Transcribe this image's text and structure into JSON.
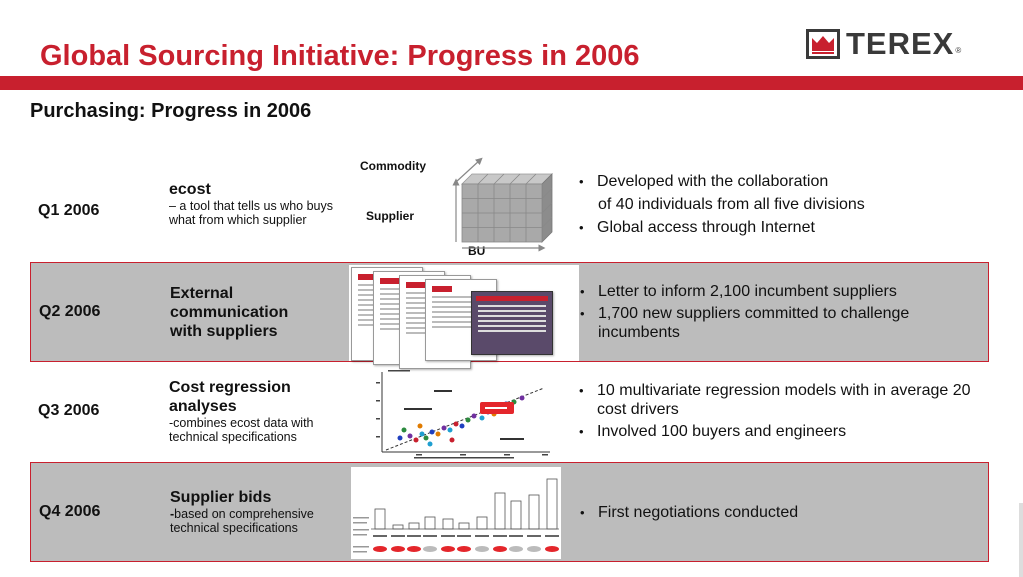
{
  "header": {
    "title": "Global Sourcing Initiative: Progress in 2006",
    "subtitle": "Purchasing: Progress in 2006",
    "logo_text": "TEREX",
    "logo_reg": "®"
  },
  "colors": {
    "accent": "#c8202e",
    "shade": "#bcbcbc"
  },
  "rows": [
    {
      "quarter": "Q1 2006",
      "heading": "ecost",
      "description": "– a tool that tells us who buys what from which supplier",
      "graphic": "cube",
      "graphic_labels": {
        "top": "Commodity",
        "left": "Supplier",
        "bottom": "BU"
      },
      "bullets": [
        "Developed with the collaboration",
        "Global access through Internet"
      ],
      "bullet_continuation": "of 40 individuals from all five divisions"
    },
    {
      "quarter": "Q2 2006",
      "heading": "External communication with  suppliers",
      "description": "",
      "graphic": "documents",
      "bullets": [
        "Letter to inform 2,100 incumbent suppliers",
        "1,700 new suppliers committed to challenge incumbents"
      ]
    },
    {
      "quarter": "Q3 2006",
      "heading": "Cost regression analyses",
      "description": "-combines ecost data with technical specifications",
      "graphic": "scatter",
      "bullets": [
        "10 multivariate regression models with in average 20 cost drivers",
        "Involved 100 buyers and engineers"
      ]
    },
    {
      "quarter": "Q4 2006",
      "heading": "Supplier bids",
      "description_bold": "-",
      "description": "based on comprehensive technical specifications",
      "graphic": "bars",
      "bullets": [
        "First negotiations conducted"
      ]
    }
  ]
}
